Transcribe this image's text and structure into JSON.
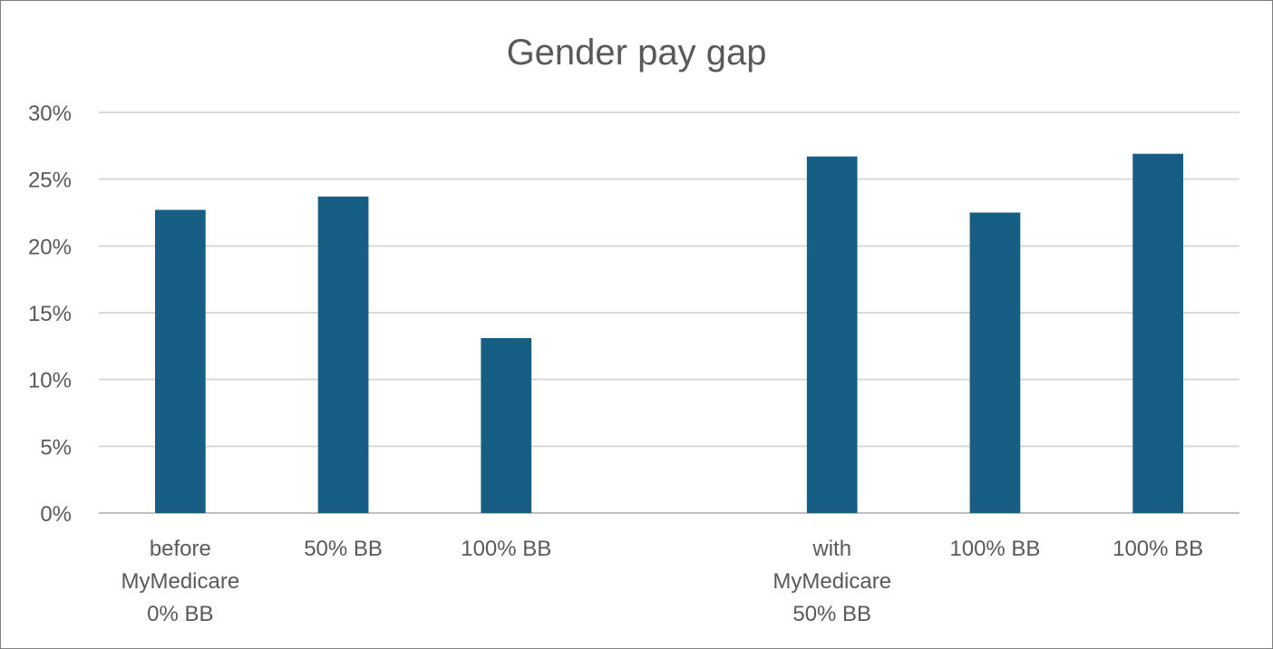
{
  "chart_data": {
    "type": "bar",
    "title": "Gender pay gap",
    "xlabel": "",
    "ylabel": "",
    "ylim": [
      0,
      30
    ],
    "yticks": [
      0,
      5,
      10,
      15,
      20,
      25,
      30
    ],
    "ytick_suffix": "%",
    "grid": true,
    "legend": "none",
    "bar_color": "#165e83",
    "categories": [
      [
        "before",
        "MyMedicare",
        "0% BB"
      ],
      [
        "50% BB"
      ],
      [
        "100% BB"
      ],
      [],
      [
        "with",
        "MyMedicare",
        "50% BB"
      ],
      [
        "100% BB"
      ],
      [
        "100% BB"
      ]
    ],
    "values": [
      22.7,
      23.7,
      13.1,
      null,
      26.7,
      22.5,
      26.9
    ]
  }
}
